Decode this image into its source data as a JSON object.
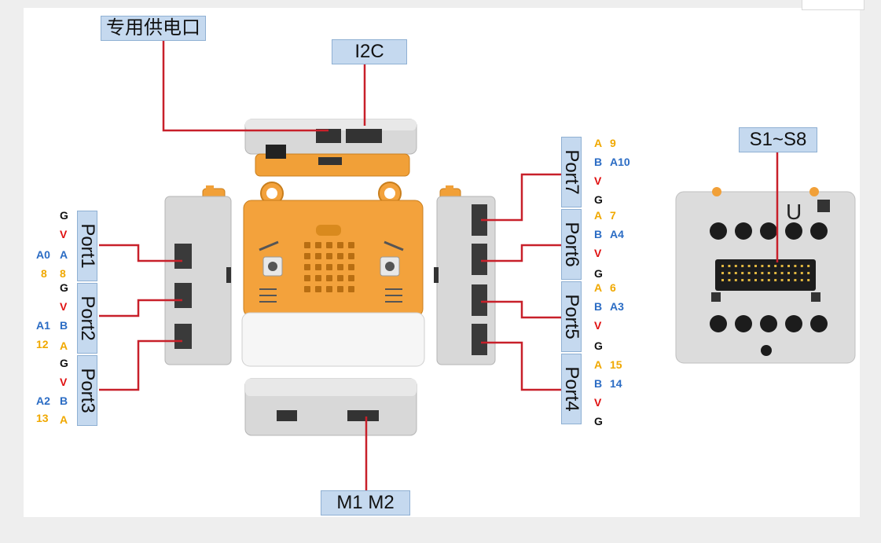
{
  "labels": {
    "power": "专用供电口",
    "i2c": "I2C",
    "motor": "M1 M2",
    "servo": "S1~S8",
    "servo_board_mark": "U"
  },
  "ports_left": [
    {
      "name": "Port1",
      "pins": [
        {
          "left": "",
          "right": "G"
        },
        {
          "left": "",
          "right": "V"
        },
        {
          "left": "A0",
          "right": "A"
        },
        {
          "left": "8",
          "right": "8"
        }
      ]
    },
    {
      "name": "Port2",
      "pins": [
        {
          "left": "",
          "right": "G"
        },
        {
          "left": "",
          "right": "V"
        },
        {
          "left": "A1",
          "right": "B"
        },
        {
          "left": "12",
          "right": "A"
        }
      ]
    },
    {
      "name": "Port3",
      "pins": [
        {
          "left": "",
          "right": "G"
        },
        {
          "left": "",
          "right": "V"
        },
        {
          "left": "A2",
          "right": "B"
        },
        {
          "left": "13",
          "right": "A"
        }
      ]
    }
  ],
  "ports_right": [
    {
      "name": "Port7",
      "pins": [
        {
          "left": "A",
          "right": "9"
        },
        {
          "left": "B",
          "right": "A10"
        },
        {
          "left": "V",
          "right": ""
        },
        {
          "left": "G",
          "right": ""
        }
      ]
    },
    {
      "name": "Port6",
      "pins": [
        {
          "left": "A",
          "right": "7"
        },
        {
          "left": "B",
          "right": "A4"
        },
        {
          "left": "V",
          "right": ""
        },
        {
          "left": "G",
          "right": ""
        }
      ]
    },
    {
      "name": "Port5",
      "pins": [
        {
          "left": "A",
          "right": "6"
        },
        {
          "left": "B",
          "right": "A3"
        },
        {
          "left": "V",
          "right": ""
        },
        {
          "left": "G",
          "right": ""
        }
      ]
    },
    {
      "name": "Port4",
      "pins": [
        {
          "left": "A",
          "right": "15"
        },
        {
          "left": "B",
          "right": "14"
        },
        {
          "left": "V",
          "right": ""
        },
        {
          "left": "G",
          "right": ""
        }
      ]
    }
  ],
  "colors": {
    "leader_line": "#c8202a",
    "label_fill": "#c5d9ef",
    "case_orange": "#f3a23c",
    "case_grey": "#d6d6d6"
  }
}
